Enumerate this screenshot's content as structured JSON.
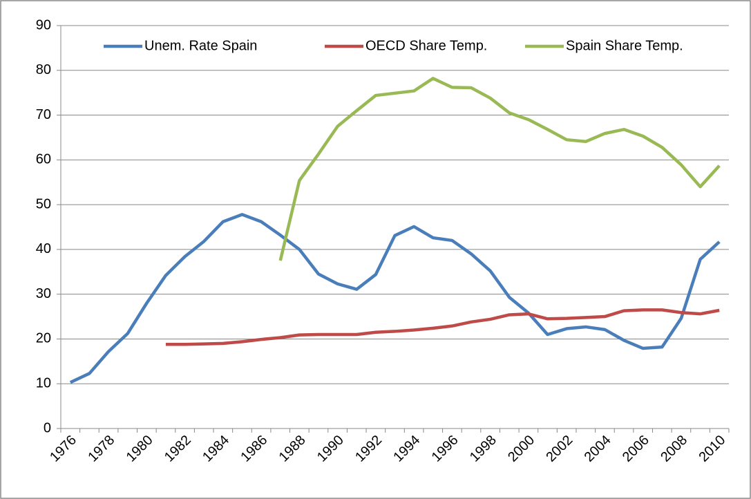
{
  "chart_data": {
    "type": "line",
    "categories": [
      "1976",
      null,
      "1978",
      null,
      "1980",
      null,
      "1982",
      null,
      "1984",
      null,
      "1986",
      null,
      "1988",
      null,
      "1990",
      null,
      "1992",
      null,
      "1994",
      null,
      "1996",
      null,
      "1998",
      null,
      "2000",
      null,
      "2002",
      null,
      "2004",
      null,
      "2006",
      null,
      "2008",
      null,
      "2010"
    ],
    "series": [
      {
        "name": "Unem. Rate Spain",
        "color": "#4a7ebb",
        "values": [
          10.3,
          12.3,
          17.2,
          21.2,
          28,
          34.2,
          38.4,
          41.8,
          46.2,
          47.8,
          46.2,
          43.2,
          40,
          34.5,
          32.3,
          31.1,
          34.4,
          43.1,
          45.1,
          42.6,
          42,
          39,
          35.2,
          29.3,
          25.8,
          21,
          22.3,
          22.7,
          22.1,
          19.7,
          17.9,
          18.2,
          24.6,
          37.8,
          41.7
        ]
      },
      {
        "name": "OECD Share Temp.",
        "color": "#be4b48",
        "values": [
          null,
          null,
          null,
          null,
          null,
          18.8,
          18.8,
          18.9,
          19.0,
          19.4,
          19.9,
          20.3,
          20.9,
          21.0,
          21.0,
          21.0,
          21.5,
          21.7,
          22.0,
          22.4,
          22.9,
          23.8,
          24.4,
          25.4,
          25.6,
          24.5,
          24.6,
          24.8,
          25.0,
          26.3,
          26.5,
          26.5,
          25.9,
          25.6,
          26.4
        ]
      },
      {
        "name": "Spain Share Temp.",
        "color": "#98b954",
        "values": [
          null,
          null,
          null,
          null,
          null,
          null,
          null,
          null,
          null,
          null,
          null,
          37.5,
          55.4,
          61.3,
          67.5,
          71,
          74.4,
          74.9,
          75.4,
          78.2,
          76.2,
          76.1,
          73.8,
          70.5,
          69,
          66.8,
          64.5,
          64.1,
          65.9,
          66.8,
          65.3,
          62.8,
          58.9,
          54,
          58.7
        ]
      }
    ],
    "ylim": [
      0,
      90
    ],
    "yticks": [
      0,
      10,
      20,
      30,
      40,
      50,
      60,
      70,
      80,
      90
    ],
    "grid": true,
    "legend": "top"
  }
}
